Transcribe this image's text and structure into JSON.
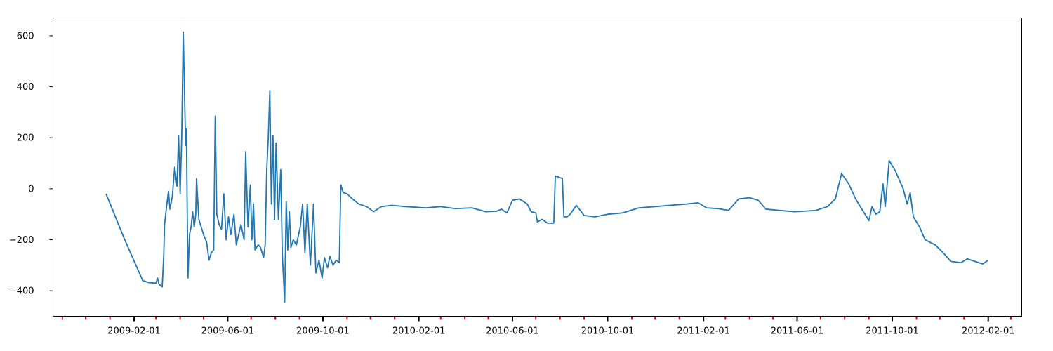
{
  "chart_data": {
    "type": "line",
    "title": "",
    "xlabel": "",
    "ylabel": "",
    "x_axis": {
      "kind": "date",
      "range": [
        "2008-10-20",
        "2012-03-15"
      ]
    },
    "y_axis": {
      "range": [
        -500,
        670
      ]
    },
    "grid": false,
    "legend": "none",
    "y_ticks": [
      -400,
      -200,
      0,
      200,
      400,
      600
    ],
    "y_tick_labels": [
      "−400",
      "−200",
      "0",
      "200",
      "400",
      "600"
    ],
    "x_major_ticks": [
      "2009-02-01",
      "2009-06-01",
      "2009-10-01",
      "2010-02-01",
      "2010-06-01",
      "2010-10-01",
      "2011-02-01",
      "2011-06-01",
      "2011-10-01",
      "2012-02-01"
    ],
    "x_minor_ticks": [
      "2008-11-01",
      "2008-12-01",
      "2009-01-01",
      "2009-03-01",
      "2009-04-01",
      "2009-05-01",
      "2009-07-01",
      "2009-08-01",
      "2009-09-01",
      "2009-11-01",
      "2009-12-01",
      "2010-01-01",
      "2010-03-01",
      "2010-04-01",
      "2010-05-01",
      "2010-07-01",
      "2010-08-01",
      "2010-09-01",
      "2010-11-01",
      "2010-12-01",
      "2011-01-01",
      "2011-03-01",
      "2011-04-01",
      "2011-05-01",
      "2011-07-01",
      "2011-08-01",
      "2011-09-01",
      "2011-11-01",
      "2011-12-01",
      "2012-01-01",
      "2012-03-01"
    ],
    "colors": {
      "line": "#1f77b4",
      "major_tick": "#000000",
      "minor_tick": "#ff0000",
      "axes": "#000000"
    },
    "series": [
      {
        "points": [
          [
            "2008-12-27",
            -20
          ],
          [
            "2009-01-20",
            -200
          ],
          [
            "2009-02-12",
            -360
          ],
          [
            "2009-02-20",
            -368
          ],
          [
            "2009-03-01",
            -370
          ],
          [
            "2009-03-03",
            -350
          ],
          [
            "2009-03-05",
            -375
          ],
          [
            "2009-03-09",
            -385
          ],
          [
            "2009-03-11",
            -260
          ],
          [
            "2009-03-12",
            -140
          ],
          [
            "2009-03-15",
            -60
          ],
          [
            "2009-03-17",
            -10
          ],
          [
            "2009-03-19",
            -80
          ],
          [
            "2009-03-22",
            -30
          ],
          [
            "2009-03-25",
            85
          ],
          [
            "2009-03-28",
            10
          ],
          [
            "2009-03-30",
            210
          ],
          [
            "2009-04-01",
            -20
          ],
          [
            "2009-04-03",
            200
          ],
          [
            "2009-04-05",
            615
          ],
          [
            "2009-04-07",
            320
          ],
          [
            "2009-04-08",
            170
          ],
          [
            "2009-04-09",
            235
          ],
          [
            "2009-04-11",
            -350
          ],
          [
            "2009-04-13",
            -180
          ],
          [
            "2009-04-15",
            -150
          ],
          [
            "2009-04-17",
            -90
          ],
          [
            "2009-04-19",
            -150
          ],
          [
            "2009-04-21",
            -100
          ],
          [
            "2009-04-22",
            40
          ],
          [
            "2009-04-25",
            -120
          ],
          [
            "2009-05-01",
            -180
          ],
          [
            "2009-05-05",
            -210
          ],
          [
            "2009-05-08",
            -280
          ],
          [
            "2009-05-11",
            -250
          ],
          [
            "2009-05-14",
            -240
          ],
          [
            "2009-05-16",
            285
          ],
          [
            "2009-05-18",
            -100
          ],
          [
            "2009-05-21",
            -140
          ],
          [
            "2009-05-24",
            -160
          ],
          [
            "2009-05-27",
            -20
          ],
          [
            "2009-05-30",
            -200
          ],
          [
            "2009-06-02",
            -110
          ],
          [
            "2009-06-05",
            -180
          ],
          [
            "2009-06-09",
            -100
          ],
          [
            "2009-06-12",
            -220
          ],
          [
            "2009-06-15",
            -180
          ],
          [
            "2009-06-18",
            -140
          ],
          [
            "2009-06-22",
            -200
          ],
          [
            "2009-06-24",
            145
          ],
          [
            "2009-06-27",
            -150
          ],
          [
            "2009-06-30",
            15
          ],
          [
            "2009-07-02",
            -200
          ],
          [
            "2009-07-04",
            -60
          ],
          [
            "2009-07-06",
            -240
          ],
          [
            "2009-07-10",
            -220
          ],
          [
            "2009-07-13",
            -230
          ],
          [
            "2009-07-17",
            -270
          ],
          [
            "2009-07-19",
            -220
          ],
          [
            "2009-07-21",
            75
          ],
          [
            "2009-07-23",
            200
          ],
          [
            "2009-07-25",
            385
          ],
          [
            "2009-07-27",
            -60
          ],
          [
            "2009-07-29",
            210
          ],
          [
            "2009-07-31",
            -120
          ],
          [
            "2009-08-02",
            180
          ],
          [
            "2009-08-05",
            -120
          ],
          [
            "2009-08-08",
            75
          ],
          [
            "2009-08-10",
            -260
          ],
          [
            "2009-08-12",
            -380
          ],
          [
            "2009-08-13",
            -445
          ],
          [
            "2009-08-15",
            -50
          ],
          [
            "2009-08-17",
            -240
          ],
          [
            "2009-08-19",
            -90
          ],
          [
            "2009-08-21",
            -230
          ],
          [
            "2009-08-24",
            -200
          ],
          [
            "2009-08-28",
            -220
          ],
          [
            "2009-09-02",
            -150
          ],
          [
            "2009-09-05",
            -60
          ],
          [
            "2009-09-08",
            -250
          ],
          [
            "2009-09-11",
            -60
          ],
          [
            "2009-09-15",
            -300
          ],
          [
            "2009-09-19",
            -60
          ],
          [
            "2009-09-22",
            -330
          ],
          [
            "2009-09-26",
            -280
          ],
          [
            "2009-09-30",
            -350
          ],
          [
            "2009-10-03",
            -270
          ],
          [
            "2009-10-07",
            -310
          ],
          [
            "2009-10-10",
            -265
          ],
          [
            "2009-10-14",
            -300
          ],
          [
            "2009-10-18",
            -280
          ],
          [
            "2009-10-22",
            -290
          ],
          [
            "2009-10-24",
            15
          ],
          [
            "2009-10-27",
            -15
          ],
          [
            "2009-11-01",
            -20
          ],
          [
            "2009-11-08",
            -40
          ],
          [
            "2009-11-16",
            -60
          ],
          [
            "2009-11-26",
            -70
          ],
          [
            "2009-12-05",
            -90
          ],
          [
            "2009-12-15",
            -70
          ],
          [
            "2009-12-28",
            -65
          ],
          [
            "2010-01-15",
            -70
          ],
          [
            "2010-02-10",
            -75
          ],
          [
            "2010-03-01",
            -70
          ],
          [
            "2010-03-20",
            -78
          ],
          [
            "2010-04-10",
            -75
          ],
          [
            "2010-04-28",
            -90
          ],
          [
            "2010-05-12",
            -88
          ],
          [
            "2010-05-18",
            -80
          ],
          [
            "2010-05-25",
            -95
          ],
          [
            "2010-06-01",
            -45
          ],
          [
            "2010-06-10",
            -40
          ],
          [
            "2010-06-20",
            -60
          ],
          [
            "2010-06-25",
            -90
          ],
          [
            "2010-07-01",
            -95
          ],
          [
            "2010-07-03",
            -130
          ],
          [
            "2010-07-09",
            -120
          ],
          [
            "2010-07-16",
            -135
          ],
          [
            "2010-07-24",
            -135
          ],
          [
            "2010-07-26",
            50
          ],
          [
            "2010-07-31",
            45
          ],
          [
            "2010-08-04",
            40
          ],
          [
            "2010-08-06",
            -110
          ],
          [
            "2010-08-10",
            -110
          ],
          [
            "2010-08-14",
            -100
          ],
          [
            "2010-08-22",
            -65
          ],
          [
            "2010-09-01",
            -105
          ],
          [
            "2010-09-15",
            -110
          ],
          [
            "2010-10-01",
            -100
          ],
          [
            "2010-10-20",
            -95
          ],
          [
            "2010-11-10",
            -75
          ],
          [
            "2010-12-01",
            -70
          ],
          [
            "2010-12-20",
            -65
          ],
          [
            "2011-01-10",
            -60
          ],
          [
            "2011-01-25",
            -55
          ],
          [
            "2011-02-05",
            -75
          ],
          [
            "2011-02-20",
            -78
          ],
          [
            "2011-03-05",
            -85
          ],
          [
            "2011-03-18",
            -40
          ],
          [
            "2011-04-01",
            -35
          ],
          [
            "2011-04-12",
            -45
          ],
          [
            "2011-04-22",
            -80
          ],
          [
            "2011-05-10",
            -85
          ],
          [
            "2011-05-28",
            -90
          ],
          [
            "2011-06-10",
            -88
          ],
          [
            "2011-06-25",
            -85
          ],
          [
            "2011-07-10",
            -70
          ],
          [
            "2011-07-20",
            -40
          ],
          [
            "2011-07-28",
            60
          ],
          [
            "2011-08-06",
            20
          ],
          [
            "2011-08-15",
            -40
          ],
          [
            "2011-08-25",
            -90
          ],
          [
            "2011-09-01",
            -125
          ],
          [
            "2011-09-05",
            -70
          ],
          [
            "2011-09-10",
            -100
          ],
          [
            "2011-09-15",
            -90
          ],
          [
            "2011-09-19",
            20
          ],
          [
            "2011-09-22",
            -70
          ],
          [
            "2011-09-27",
            110
          ],
          [
            "2011-10-05",
            70
          ],
          [
            "2011-10-15",
            0
          ],
          [
            "2011-10-20",
            -60
          ],
          [
            "2011-10-24",
            -15
          ],
          [
            "2011-10-28",
            -110
          ],
          [
            "2011-11-05",
            -150
          ],
          [
            "2011-11-12",
            -200
          ],
          [
            "2011-11-25",
            -220
          ],
          [
            "2011-12-05",
            -250
          ],
          [
            "2011-12-15",
            -285
          ],
          [
            "2011-12-28",
            -290
          ],
          [
            "2012-01-05",
            -275
          ],
          [
            "2012-01-15",
            -285
          ],
          [
            "2012-01-25",
            -295
          ],
          [
            "2012-02-01",
            -280
          ]
        ]
      }
    ]
  }
}
